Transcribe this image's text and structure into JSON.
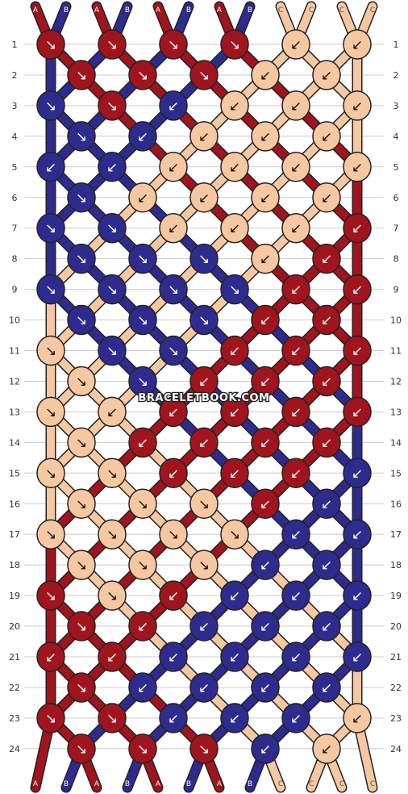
{
  "watermark": "BRACELETBOOK.COM",
  "colors": {
    "A": "#a0141e",
    "B": "#2f2b8e",
    "C": "#f6c8a2",
    "grid": "#cccccc",
    "outline": "#222222"
  },
  "top_labels": [
    "A",
    "B",
    "A",
    "B",
    "A",
    "B",
    "A",
    "B",
    "C",
    "C",
    "C",
    "C"
  ],
  "bottom_labels": [
    "A",
    "B",
    "A",
    "B",
    "A",
    "B",
    "A",
    "B",
    "C",
    "C",
    "C",
    "C"
  ],
  "row_labels": [
    "1",
    "2",
    "3",
    "4",
    "5",
    "6",
    "7",
    "8",
    "9",
    "10",
    "11",
    "12",
    "13",
    "14",
    "15",
    "16",
    "17",
    "18",
    "19",
    "20",
    "21",
    "22",
    "23",
    "24"
  ],
  "knot_arrow": {
    "F": "↘",
    "B": "↙"
  },
  "knots": [
    [
      "F",
      "F",
      "F",
      "F",
      "B",
      "B"
    ],
    [
      "F",
      "F",
      "F",
      "B",
      "B"
    ],
    [
      "F",
      "F",
      "B",
      "B",
      "B",
      "B"
    ],
    [
      "F",
      "B",
      "B",
      "B",
      "B"
    ],
    [
      "B",
      "B",
      "B",
      "B",
      "B",
      "B"
    ],
    [
      "F",
      "B",
      "B",
      "B",
      "B"
    ],
    [
      "F",
      "F",
      "B",
      "B",
      "B",
      "B"
    ],
    [
      "F",
      "F",
      "F",
      "B",
      "B"
    ],
    [
      "F",
      "F",
      "F",
      "F",
      "B",
      "B"
    ],
    [
      "F",
      "F",
      "F",
      "B",
      "B"
    ],
    [
      "F",
      "F",
      "F",
      "B",
      "B",
      "B"
    ],
    [
      "F",
      "F",
      "B",
      "B",
      "B"
    ],
    [
      "F",
      "B",
      "B",
      "B",
      "B",
      "B"
    ],
    [
      "F",
      "B",
      "B",
      "B",
      "B"
    ],
    [
      "F",
      "F",
      "B",
      "B",
      "B",
      "B"
    ],
    [
      "F",
      "F",
      "F",
      "B",
      "B"
    ],
    [
      "F",
      "F",
      "F",
      "F",
      "B",
      "B"
    ],
    [
      "F",
      "F",
      "F",
      "B",
      "B"
    ],
    [
      "F",
      "F",
      "B",
      "B",
      "B",
      "B"
    ],
    [
      "F",
      "B",
      "B",
      "B",
      "B"
    ],
    [
      "B",
      "B",
      "B",
      "B",
      "B",
      "B"
    ],
    [
      "F",
      "B",
      "B",
      "B",
      "B"
    ],
    [
      "F",
      "F",
      "B",
      "B",
      "B",
      "B"
    ],
    [
      "F",
      "F",
      "F",
      "B",
      "B"
    ]
  ]
}
